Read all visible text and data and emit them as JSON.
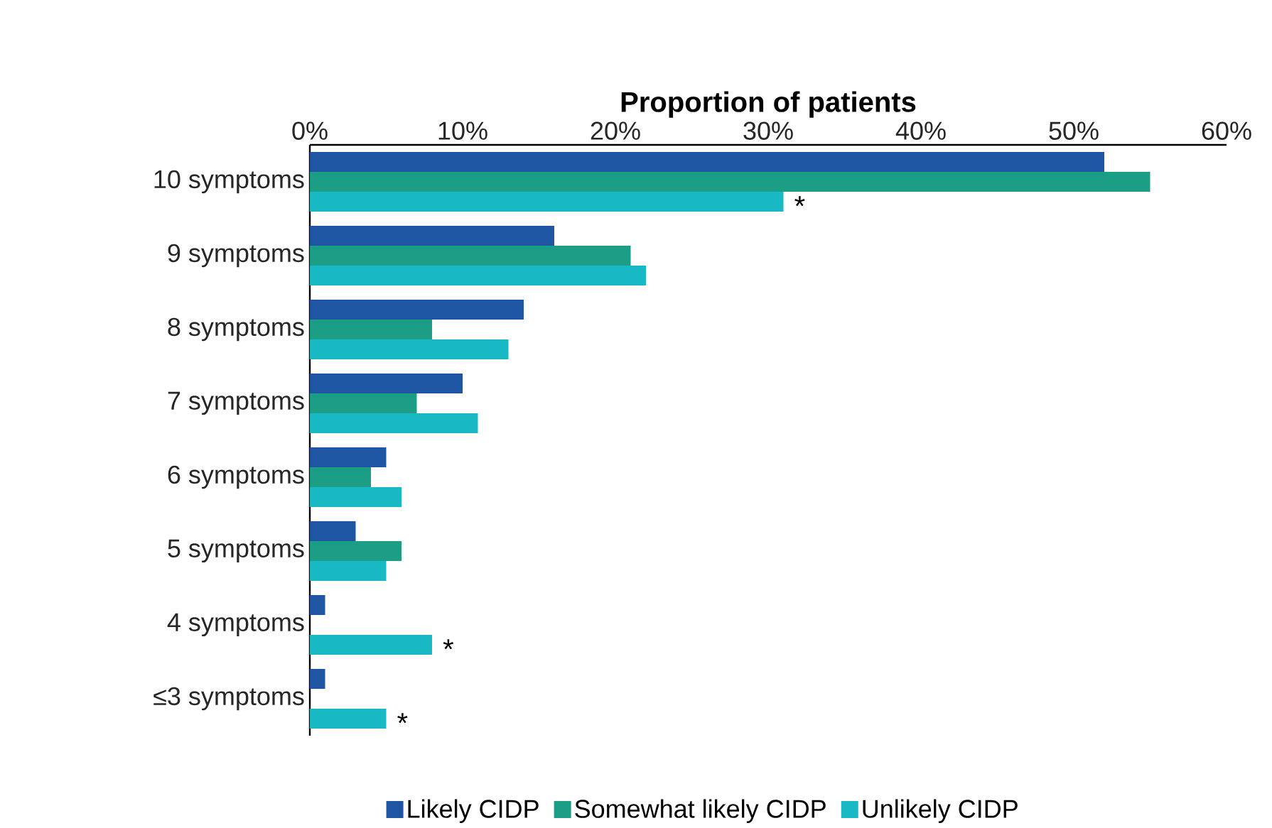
{
  "chart_data": {
    "type": "bar",
    "orientation": "horizontal",
    "xlabel": "Proportion of patients",
    "categories": [
      "10 symptoms",
      "9 symptoms",
      "8 symptoms",
      "7 symptoms",
      "6 symptoms",
      "5 symptoms",
      "4 symptoms",
      "≤3 symptoms"
    ],
    "series": [
      {
        "name": "Likely CIDP",
        "color": "#1f56a4",
        "values": [
          52,
          16,
          14,
          10,
          5,
          3,
          1,
          1
        ]
      },
      {
        "name": "Somewhat likely CIDP",
        "color": "#1b9e85",
        "values": [
          55,
          21,
          8,
          7,
          4,
          6,
          0,
          0
        ]
      },
      {
        "name": "Unlikely CIDP",
        "color": "#19b8c5",
        "values": [
          31,
          22,
          13,
          11,
          6,
          5,
          8,
          5
        ],
        "value_labels": [
          "*",
          null,
          null,
          null,
          null,
          null,
          "*",
          "*"
        ]
      }
    ],
    "xlim": [
      0,
      60
    ],
    "xticks": [
      {
        "value": 0,
        "label": "0%"
      },
      {
        "value": 10,
        "label": "10%"
      },
      {
        "value": 20,
        "label": "20%"
      },
      {
        "value": 30,
        "label": "30%"
      },
      {
        "value": 40,
        "label": "40%"
      },
      {
        "value": 50,
        "label": "50%"
      },
      {
        "value": 60,
        "label": "60%"
      }
    ],
    "legend": "bottom"
  }
}
